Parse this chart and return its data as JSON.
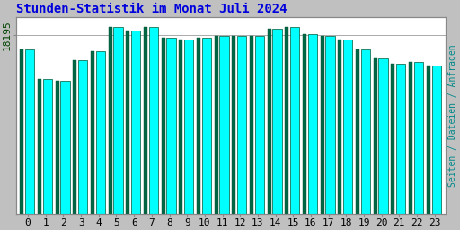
{
  "title": "Stunden-Statistik im Monat Juli 2024",
  "title_color": "#0000dd",
  "ylabel_right": "Seiten / Dateien / Anfragen",
  "ylabel_right_color": "#008888",
  "background_color": "#c0c0c0",
  "plot_bg_color": "#ffffff",
  "bar_cyan_color": "#00ffff",
  "bar_green_color": "#006644",
  "bar_edge_color": "#005533",
  "ytick_label": "18195",
  "ytick_color": "#004400",
  "categories": [
    0,
    1,
    2,
    3,
    4,
    5,
    6,
    7,
    8,
    9,
    10,
    11,
    12,
    13,
    14,
    15,
    16,
    17,
    18,
    19,
    20,
    21,
    22,
    23
  ],
  "values": [
    88,
    72,
    71,
    82,
    87,
    100,
    98,
    100,
    94,
    93,
    94,
    95,
    95,
    95,
    99,
    100,
    96,
    95,
    93,
    88,
    83,
    80,
    81,
    79
  ],
  "grid_color": "#aaaaaa",
  "font_family": "monospace",
  "title_fontsize": 10,
  "tick_fontsize": 8,
  "ylabel_right_fontsize": 7
}
